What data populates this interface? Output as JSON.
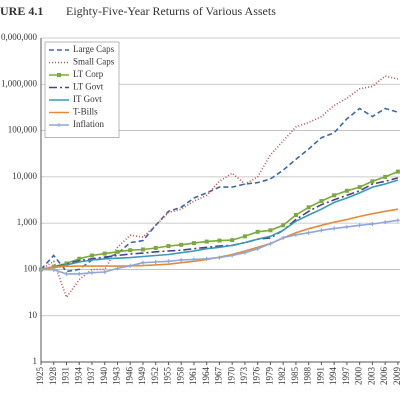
{
  "chart_data": {
    "type": "line",
    "figure_label": "URE 4.1",
    "title": "Eighty-Five-Year Returns of Various Assets",
    "log_scale": true,
    "grid": true,
    "legend_position": "upper-left",
    "ylim": [
      1,
      10000000
    ],
    "yticks": [
      1,
      10,
      100,
      {
        "value": 1000,
        "label": "1,000"
      },
      {
        "value": 10000,
        "label": "10,000"
      },
      {
        "value": 100000,
        "label": "100,000"
      },
      {
        "value": 1000000,
        "label": "1,000,000"
      },
      {
        "value": 10000000,
        "label": "0,000,000"
      }
    ],
    "xlim": [
      1925,
      2010
    ],
    "xticks": [
      1925,
      1928,
      1931,
      1934,
      1937,
      1940,
      1943,
      1946,
      1949,
      1952,
      1955,
      1958,
      1961,
      1964,
      1967,
      1970,
      1973,
      1976,
      1979,
      1982,
      1985,
      1988,
      1991,
      1994,
      1997,
      2000,
      2003,
      2006,
      2009
    ],
    "x": [
      1925,
      1928,
      1931,
      1934,
      1937,
      1940,
      1943,
      1946,
      1949,
      1952,
      1955,
      1958,
      1961,
      1964,
      1967,
      1970,
      1973,
      1976,
      1979,
      1982,
      1985,
      1988,
      1991,
      1994,
      1997,
      2000,
      2003,
      2006,
      2009
    ],
    "series": [
      {
        "name": "Large Caps",
        "color": "#3a6aa8",
        "dash": "5,3",
        "marker": "none",
        "values": [
          100,
          200,
          90,
          100,
          160,
          170,
          220,
          380,
          420,
          900,
          1800,
          2200,
          3500,
          4500,
          6000,
          6000,
          7000,
          7500,
          9000,
          14000,
          24000,
          40000,
          70000,
          90000,
          180000,
          300000,
          200000,
          300000,
          250000
        ]
      },
      {
        "name": "Small Caps",
        "color": "#c0504d",
        "dash": "1,2",
        "marker": "none",
        "values": [
          100,
          150,
          25,
          60,
          100,
          100,
          300,
          550,
          500,
          900,
          1700,
          2000,
          3000,
          4000,
          8000,
          12000,
          7000,
          10000,
          30000,
          60000,
          120000,
          150000,
          200000,
          350000,
          500000,
          800000,
          900000,
          1500000,
          1300000
        ]
      },
      {
        "name": "LT Corp",
        "color": "#7aab3a",
        "dash": "none",
        "marker": "square",
        "values": [
          100,
          115,
          135,
          170,
          200,
          220,
          240,
          260,
          270,
          290,
          320,
          340,
          370,
          400,
          420,
          430,
          520,
          650,
          700,
          900,
          1500,
          2200,
          3000,
          4000,
          5000,
          6000,
          8000,
          10000,
          13000
        ]
      },
      {
        "name": "LT Govt",
        "color": "#4a3f8f",
        "dash": "8,3,2,3",
        "marker": "none",
        "values": [
          100,
          110,
          130,
          155,
          170,
          185,
          200,
          215,
          225,
          240,
          250,
          260,
          280,
          300,
          320,
          330,
          380,
          450,
          480,
          700,
          1200,
          1800,
          2500,
          3200,
          4000,
          5000,
          7000,
          8000,
          9500
        ]
      },
      {
        "name": "IT Govt",
        "color": "#3a9ab5",
        "dash": "none",
        "marker": "none",
        "values": [
          100,
          110,
          125,
          145,
          160,
          170,
          175,
          180,
          190,
          200,
          210,
          230,
          250,
          280,
          300,
          330,
          380,
          450,
          520,
          700,
          1100,
          1500,
          2000,
          2800,
          3500,
          4500,
          6000,
          7000,
          8500
        ]
      },
      {
        "name": "T-Bills",
        "color": "#e8893a",
        "dash": "none",
        "marker": "none",
        "values": [
          100,
          111,
          117,
          118,
          118,
          118,
          118,
          119,
          121,
          125,
          130,
          140,
          150,
          165,
          185,
          210,
          250,
          300,
          360,
          480,
          620,
          760,
          900,
          1050,
          1200,
          1400,
          1600,
          1800,
          2000
        ]
      },
      {
        "name": "Inflation",
        "color": "#8fa8d8",
        "dash": "none",
        "marker": "cross",
        "values": [
          100,
          98,
          80,
          80,
          85,
          88,
          105,
          120,
          140,
          145,
          150,
          160,
          165,
          170,
          180,
          200,
          230,
          280,
          360,
          480,
          560,
          620,
          700,
          770,
          830,
          900,
          960,
          1050,
          1150
        ]
      }
    ]
  }
}
